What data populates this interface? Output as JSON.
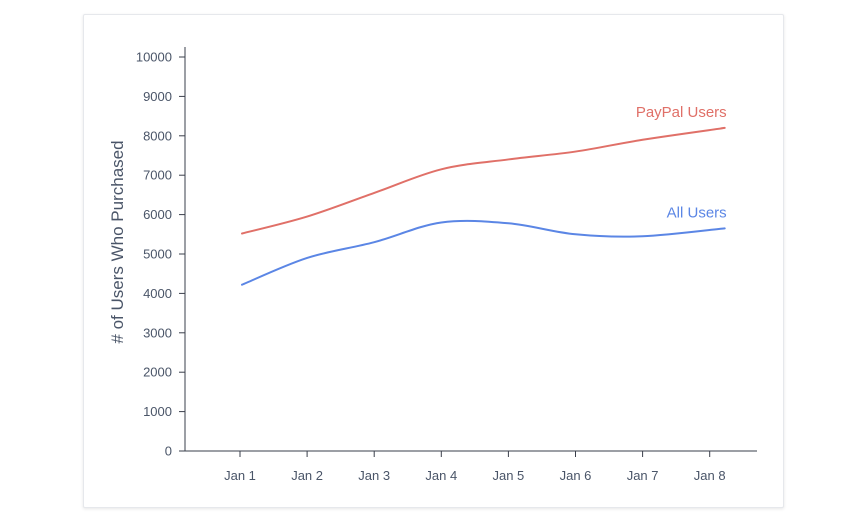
{
  "chart_data": {
    "type": "line",
    "title": "",
    "xlabel": "",
    "ylabel": "# of Users Who Purchased",
    "ylim": [
      0,
      10000
    ],
    "yticks": [
      0,
      1000,
      2000,
      3000,
      4000,
      5000,
      6000,
      7000,
      8000,
      9000,
      10000
    ],
    "categories": [
      "Jan 1",
      "Jan 2",
      "Jan 3",
      "Jan 4",
      "Jan 5",
      "Jan 6",
      "Jan 7",
      "Jan 8"
    ],
    "grid": false,
    "legend": "inline-at-line-end",
    "series": [
      {
        "name": "PayPal Users",
        "color": "#e07068",
        "values": [
          5520,
          5950,
          6550,
          7150,
          7400,
          7600,
          7900,
          8200
        ]
      },
      {
        "name": "All Users",
        "color": "#5b86e5",
        "values": [
          4220,
          4900,
          5300,
          5800,
          5780,
          5500,
          5450,
          5650
        ]
      }
    ]
  }
}
